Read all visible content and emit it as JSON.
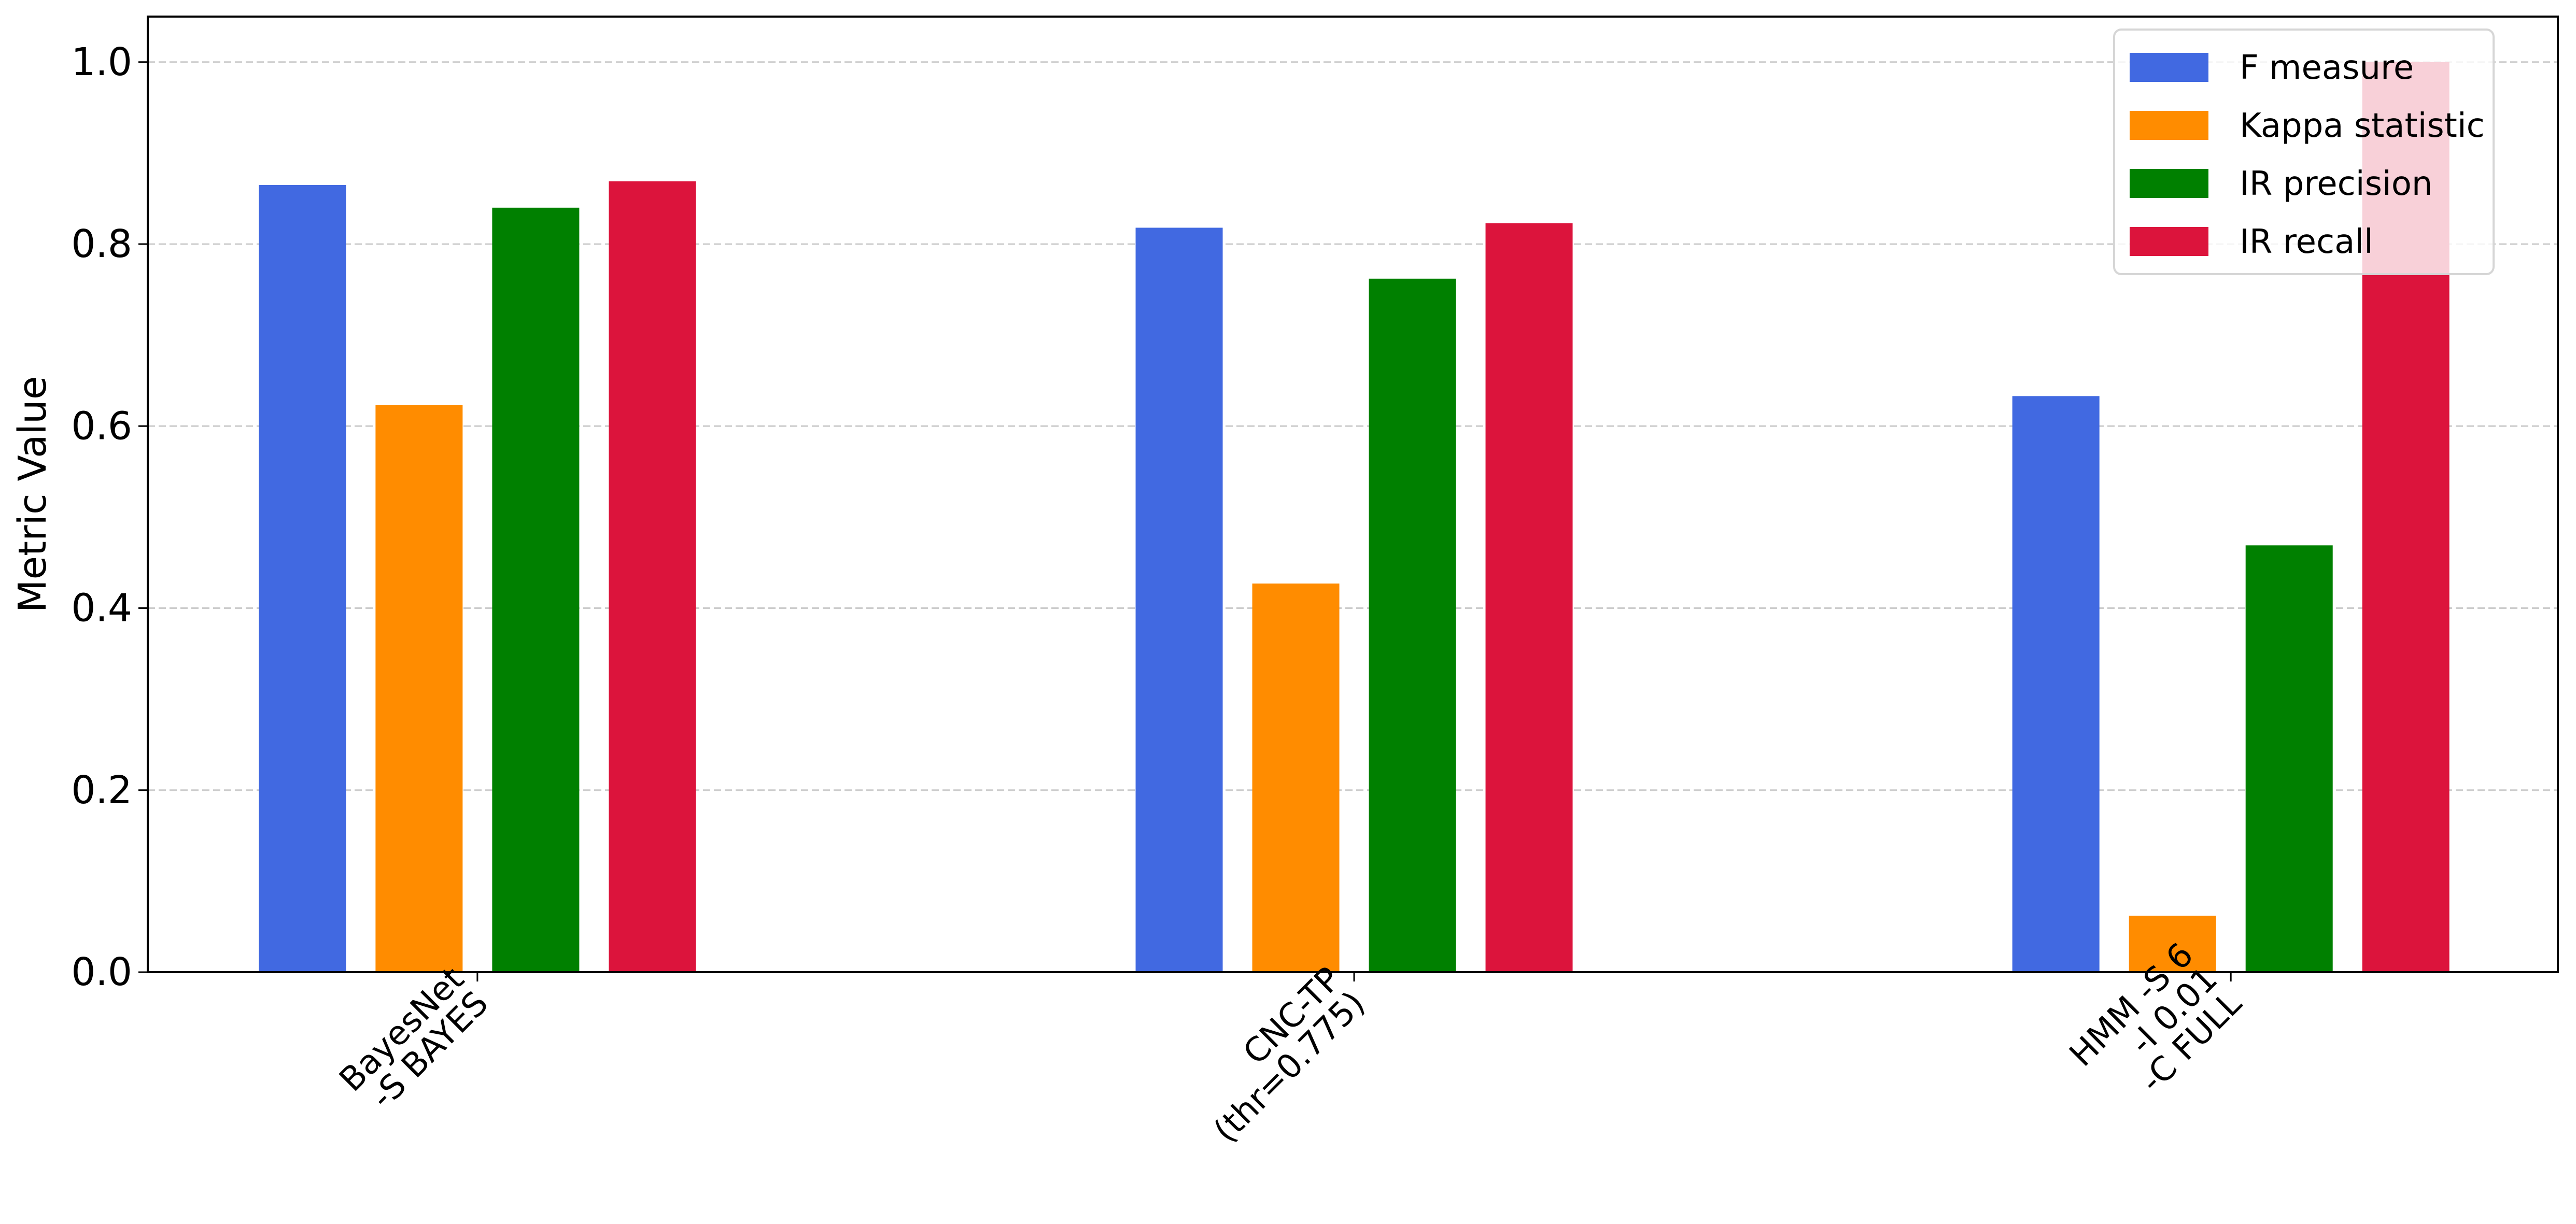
{
  "chart_data": {
    "type": "bar",
    "title": "",
    "xlabel": "",
    "ylabel": "Metric Value",
    "ylim": [
      0,
      1.05
    ],
    "yticks": [
      "0.0",
      "0.2",
      "0.4",
      "0.6",
      "0.8",
      "1.0"
    ],
    "grid": "y-dashed",
    "legend_placement": "top-right",
    "categories": [
      [
        "BayesNet",
        "-S BAYES"
      ],
      [
        "CNC-TP",
        "(thr=0.775)"
      ],
      [
        "HMM -S 6",
        "-I 0.01",
        "-C FULL"
      ]
    ],
    "series": [
      {
        "name": "F measure",
        "color": "#4169E1",
        "values": [
          0.865,
          0.818,
          0.633
        ]
      },
      {
        "name": "Kappa statistic",
        "color": "#FF8C00",
        "values": [
          0.623,
          0.427,
          0.062
        ]
      },
      {
        "name": "IR precision",
        "color": "#008000",
        "values": [
          0.84,
          0.762,
          0.469
        ]
      },
      {
        "name": "IR recall",
        "color": "#DC143C",
        "values": [
          0.869,
          0.823,
          1.0
        ]
      }
    ]
  }
}
